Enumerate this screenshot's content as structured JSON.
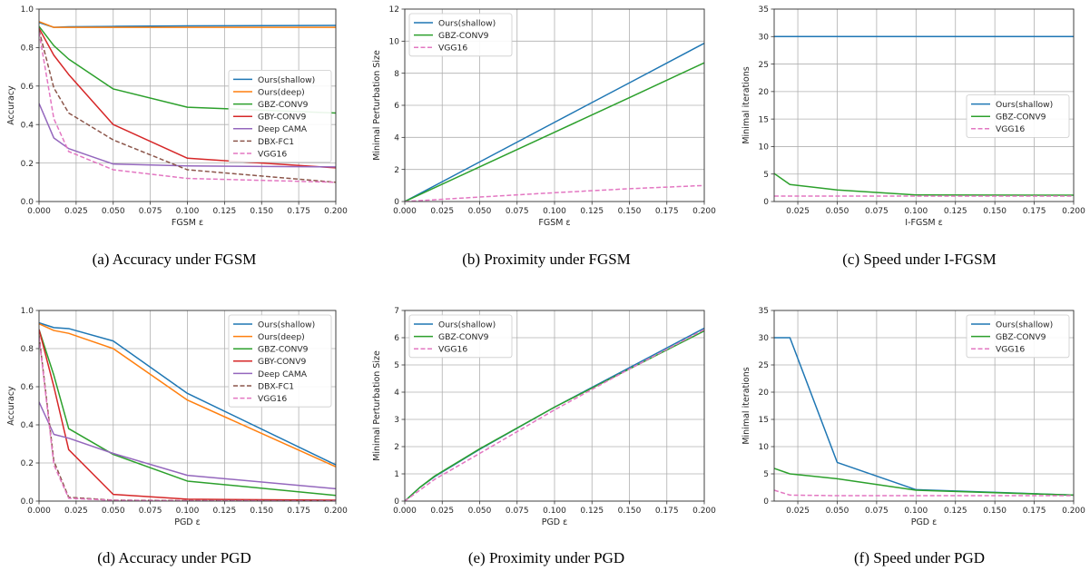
{
  "figure": {
    "captions": [
      "(a)  Accuracy under FGSM",
      "(b)  Proximity under FGSM",
      "(c)  Speed under I-FGSM",
      "(d)  Accuracy under PGD",
      "(e)  Proximity under PGD",
      "(f)  Speed under PGD"
    ]
  },
  "colors": {
    "ours_shallow": "#1f77b4",
    "ours_deep": "#ff7f0e",
    "gbz_conv9": "#2ca02c",
    "gby_conv9": "#d62728",
    "deep_cama": "#9467bd",
    "dbx_fc1": "#8c564b",
    "vgg16": "#e377c2"
  },
  "chart_data": [
    {
      "id": "a",
      "type": "line",
      "xlabel": "FGSM ε",
      "ylabel": "Accuracy",
      "xlim": [
        0.0,
        0.2
      ],
      "ylim": [
        0.0,
        1.0
      ],
      "xticks": [
        "0.000",
        "0.025",
        "0.050",
        "0.075",
        "0.100",
        "0.125",
        "0.150",
        "0.175",
        "0.200"
      ],
      "yticks": [
        "0.0",
        "0.2",
        "0.4",
        "0.6",
        "0.8",
        "1.0"
      ],
      "grid": true,
      "legend_position": "center-right",
      "x": [
        0.0,
        0.01,
        0.02,
        0.05,
        0.1,
        0.2
      ],
      "series": [
        {
          "name": "Ours(shallow)",
          "color_key": "ours_shallow",
          "dashed": false,
          "values": [
            0.93,
            0.905,
            0.908,
            0.91,
            0.913,
            0.915
          ]
        },
        {
          "name": "Ours(deep)",
          "color_key": "ours_deep",
          "dashed": false,
          "values": [
            0.935,
            0.905,
            0.905,
            0.905,
            0.905,
            0.905
          ]
        },
        {
          "name": "GBZ-CONV9",
          "color_key": "gbz_conv9",
          "dashed": false,
          "values": [
            0.91,
            0.81,
            0.74,
            0.585,
            0.49,
            0.46
          ]
        },
        {
          "name": "GBY-CONV9",
          "color_key": "gby_conv9",
          "dashed": false,
          "values": [
            0.9,
            0.76,
            0.66,
            0.4,
            0.225,
            0.175
          ]
        },
        {
          "name": "Deep CAMA",
          "color_key": "deep_cama",
          "dashed": false,
          "values": [
            0.51,
            0.33,
            0.275,
            0.195,
            0.185,
            0.18
          ]
        },
        {
          "name": "DBX-FC1",
          "color_key": "dbx_fc1",
          "dashed": true,
          "values": [
            0.89,
            0.59,
            0.46,
            0.32,
            0.165,
            0.1
          ]
        },
        {
          "name": "VGG16",
          "color_key": "vgg16",
          "dashed": true,
          "values": [
            0.88,
            0.43,
            0.26,
            0.165,
            0.12,
            0.1
          ]
        }
      ]
    },
    {
      "id": "b",
      "type": "line",
      "xlabel": "FGSM ε",
      "ylabel": "Minimal Perturbation Size",
      "xlim": [
        0.0,
        0.2
      ],
      "ylim": [
        0,
        12
      ],
      "xticks": [
        "0.000",
        "0.025",
        "0.050",
        "0.075",
        "0.100",
        "0.125",
        "0.150",
        "0.175",
        "0.200"
      ],
      "yticks": [
        "0",
        "2",
        "4",
        "6",
        "8",
        "10",
        "12"
      ],
      "grid": true,
      "legend_position": "top-left",
      "x": [
        0.0,
        0.05,
        0.1,
        0.15,
        0.2
      ],
      "series": [
        {
          "name": "Ours(shallow)",
          "color_key": "ours_shallow",
          "dashed": false,
          "values": [
            0.0,
            2.47,
            4.94,
            7.4,
            9.87
          ]
        },
        {
          "name": "GBZ-CONV9",
          "color_key": "gbz_conv9",
          "dashed": false,
          "values": [
            0.0,
            2.16,
            4.32,
            6.48,
            8.65
          ]
        },
        {
          "name": "VGG16",
          "color_key": "vgg16",
          "dashed": true,
          "values": [
            0.0,
            0.28,
            0.55,
            0.8,
            1.0
          ]
        }
      ]
    },
    {
      "id": "c",
      "type": "line",
      "xlabel": "I-FGSM ε",
      "ylabel": "Minimal iterations",
      "xlim": [
        0.01,
        0.2
      ],
      "ylim": [
        0,
        35
      ],
      "xticks": [
        "0.025",
        "0.050",
        "0.075",
        "0.100",
        "0.125",
        "0.150",
        "0.175",
        "0.200"
      ],
      "yticks": [
        "0",
        "5",
        "10",
        "15",
        "20",
        "25",
        "30",
        "35"
      ],
      "grid": true,
      "legend_position": "center-right",
      "x": [
        0.01,
        0.02,
        0.05,
        0.1,
        0.2
      ],
      "series": [
        {
          "name": "Ours(shallow)",
          "color_key": "ours_shallow",
          "dashed": false,
          "values": [
            30,
            30,
            30,
            30,
            30
          ]
        },
        {
          "name": "GBZ-CONV9",
          "color_key": "gbz_conv9",
          "dashed": false,
          "values": [
            5.1,
            3.1,
            2.1,
            1.2,
            1.15
          ]
        },
        {
          "name": "VGG16",
          "color_key": "vgg16",
          "dashed": true,
          "values": [
            1.0,
            1.0,
            1.0,
            1.0,
            1.0
          ]
        }
      ]
    },
    {
      "id": "d",
      "type": "line",
      "xlabel": "PGD ε",
      "ylabel": "Accuracy",
      "xlim": [
        0.0,
        0.2
      ],
      "ylim": [
        0.0,
        1.0
      ],
      "xticks": [
        "0.000",
        "0.025",
        "0.050",
        "0.075",
        "0.100",
        "0.125",
        "0.150",
        "0.175",
        "0.200"
      ],
      "yticks": [
        "0.0",
        "0.2",
        "0.4",
        "0.6",
        "0.8",
        "1.0"
      ],
      "grid": true,
      "legend_position": "top-right",
      "x": [
        0.0,
        0.01,
        0.02,
        0.05,
        0.1,
        0.2
      ],
      "series": [
        {
          "name": "Ours(shallow)",
          "color_key": "ours_shallow",
          "dashed": false,
          "values": [
            0.935,
            0.91,
            0.905,
            0.84,
            0.565,
            0.19
          ]
        },
        {
          "name": "Ours(deep)",
          "color_key": "ours_deep",
          "dashed": false,
          "values": [
            0.93,
            0.895,
            0.88,
            0.8,
            0.53,
            0.18
          ]
        },
        {
          "name": "GBZ-CONV9",
          "color_key": "gbz_conv9",
          "dashed": false,
          "values": [
            0.9,
            0.66,
            0.38,
            0.245,
            0.105,
            0.03
          ]
        },
        {
          "name": "GBY-CONV9",
          "color_key": "gby_conv9",
          "dashed": false,
          "values": [
            0.9,
            0.6,
            0.27,
            0.035,
            0.01,
            0.005
          ]
        },
        {
          "name": "Deep CAMA",
          "color_key": "deep_cama",
          "dashed": false,
          "values": [
            0.52,
            0.35,
            0.33,
            0.25,
            0.135,
            0.065
          ]
        },
        {
          "name": "DBX-FC1",
          "color_key": "dbx_fc1",
          "dashed": true,
          "values": [
            0.87,
            0.21,
            0.02,
            0.005,
            0.003,
            0.002
          ]
        },
        {
          "name": "VGG16",
          "color_key": "vgg16",
          "dashed": true,
          "values": [
            0.86,
            0.19,
            0.015,
            0.004,
            0.002,
            0.001
          ]
        }
      ]
    },
    {
      "id": "e",
      "type": "line",
      "xlabel": "PGD ε",
      "ylabel": "Minimal Perturbation Size",
      "xlim": [
        0.0,
        0.2
      ],
      "ylim": [
        0,
        7
      ],
      "xticks": [
        "0.000",
        "0.025",
        "0.050",
        "0.075",
        "0.100",
        "0.125",
        "0.150",
        "0.175",
        "0.200"
      ],
      "yticks": [
        "0",
        "1",
        "2",
        "3",
        "4",
        "5",
        "6",
        "7"
      ],
      "grid": true,
      "legend_position": "top-left",
      "x": [
        0.0,
        0.01,
        0.02,
        0.05,
        0.1,
        0.15,
        0.2
      ],
      "series": [
        {
          "name": "Ours(shallow)",
          "color_key": "ours_shallow",
          "dashed": false,
          "values": [
            0.0,
            0.5,
            0.9,
            1.9,
            3.45,
            4.9,
            6.35
          ]
        },
        {
          "name": "GBZ-CONV9",
          "color_key": "gbz_conv9",
          "dashed": false,
          "values": [
            0.0,
            0.5,
            0.92,
            1.92,
            3.45,
            4.85,
            6.25
          ]
        },
        {
          "name": "VGG16",
          "color_key": "vgg16",
          "dashed": true,
          "values": [
            0.0,
            0.4,
            0.8,
            1.75,
            3.35,
            4.85,
            6.3
          ]
        }
      ]
    },
    {
      "id": "f",
      "type": "line",
      "xlabel": "PGD ε",
      "ylabel": "Minimal iterations",
      "xlim": [
        0.01,
        0.2
      ],
      "ylim": [
        0,
        35
      ],
      "xticks": [
        "0.025",
        "0.050",
        "0.075",
        "0.100",
        "0.125",
        "0.150",
        "0.175",
        "0.200"
      ],
      "yticks": [
        "0",
        "5",
        "10",
        "15",
        "20",
        "25",
        "30",
        "35"
      ],
      "grid": true,
      "legend_position": "top-right",
      "x": [
        0.01,
        0.02,
        0.05,
        0.1,
        0.2
      ],
      "series": [
        {
          "name": "Ours(shallow)",
          "color_key": "ours_shallow",
          "dashed": false,
          "values": [
            30,
            30,
            7.1,
            2.1,
            1.1
          ]
        },
        {
          "name": "GBZ-CONV9",
          "color_key": "gbz_conv9",
          "dashed": false,
          "values": [
            6.0,
            5.0,
            4.1,
            2.0,
            1.1
          ]
        },
        {
          "name": "VGG16",
          "color_key": "vgg16",
          "dashed": true,
          "values": [
            2.0,
            1.1,
            1.0,
            1.0,
            1.0
          ]
        }
      ]
    }
  ]
}
